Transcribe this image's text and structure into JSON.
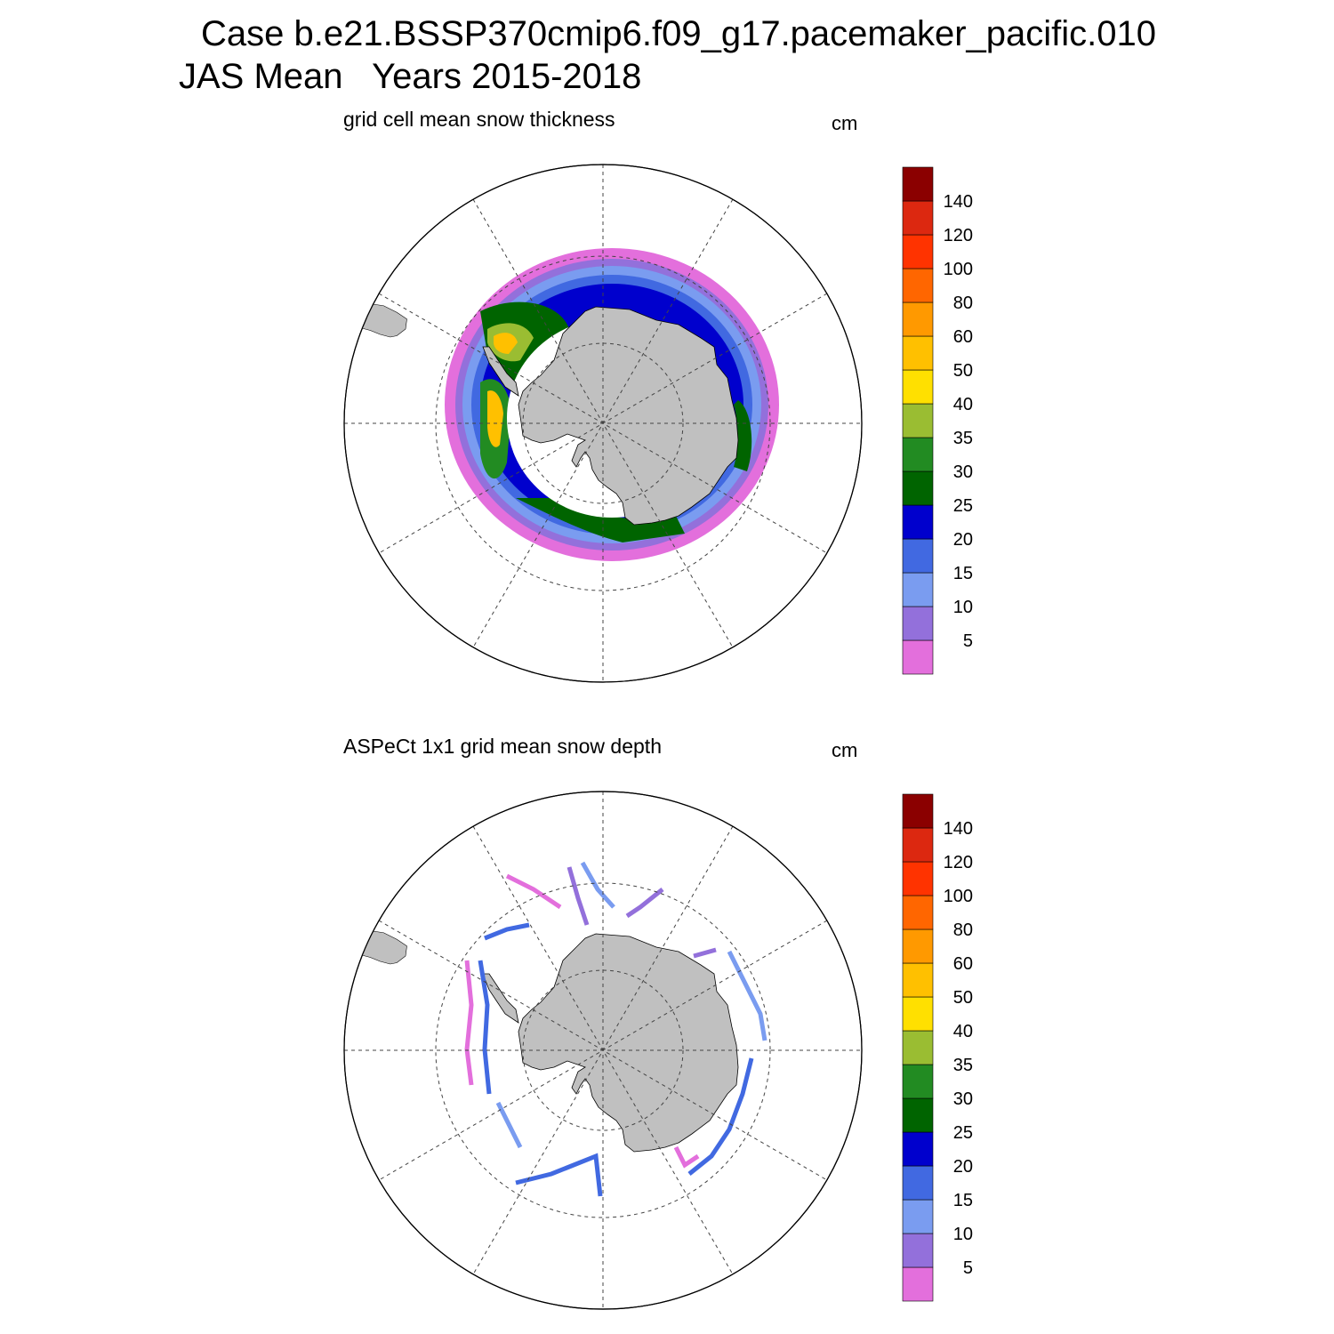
{
  "header": {
    "line1": "Case b.e21.BSSP370cmip6.f09_g17.pacemaker_pacific.010",
    "line2": "JAS Mean   Years 2015-2018"
  },
  "panels": [
    {
      "id": "model",
      "title": "grid cell mean snow thickness",
      "units": "cm",
      "field_type": "continuous sea-ice snow thickness ring around Antarctica"
    },
    {
      "id": "obs",
      "title": "ASPeCt 1x1 grid mean snow depth",
      "units": "cm",
      "field_type": "sparse ship-track observations"
    }
  ],
  "colorbar": {
    "labels": [
      "5",
      "10",
      "15",
      "20",
      "25",
      "30",
      "35",
      "40",
      "50",
      "60",
      "80",
      "100",
      "120",
      "140"
    ],
    "colors": [
      "#e36fdc",
      "#9370db",
      "#7a9cf0",
      "#4169e1",
      "#0000cd",
      "#006400",
      "#228b22",
      "#9abd32",
      "#ffe000",
      "#ffc000",
      "#ff9900",
      "#ff6600",
      "#ff3300",
      "#dc2810",
      "#8b0000"
    ]
  },
  "map": {
    "projection": "south polar stereographic",
    "land_color": "#c0c0c0",
    "grid_color": "#444444"
  }
}
